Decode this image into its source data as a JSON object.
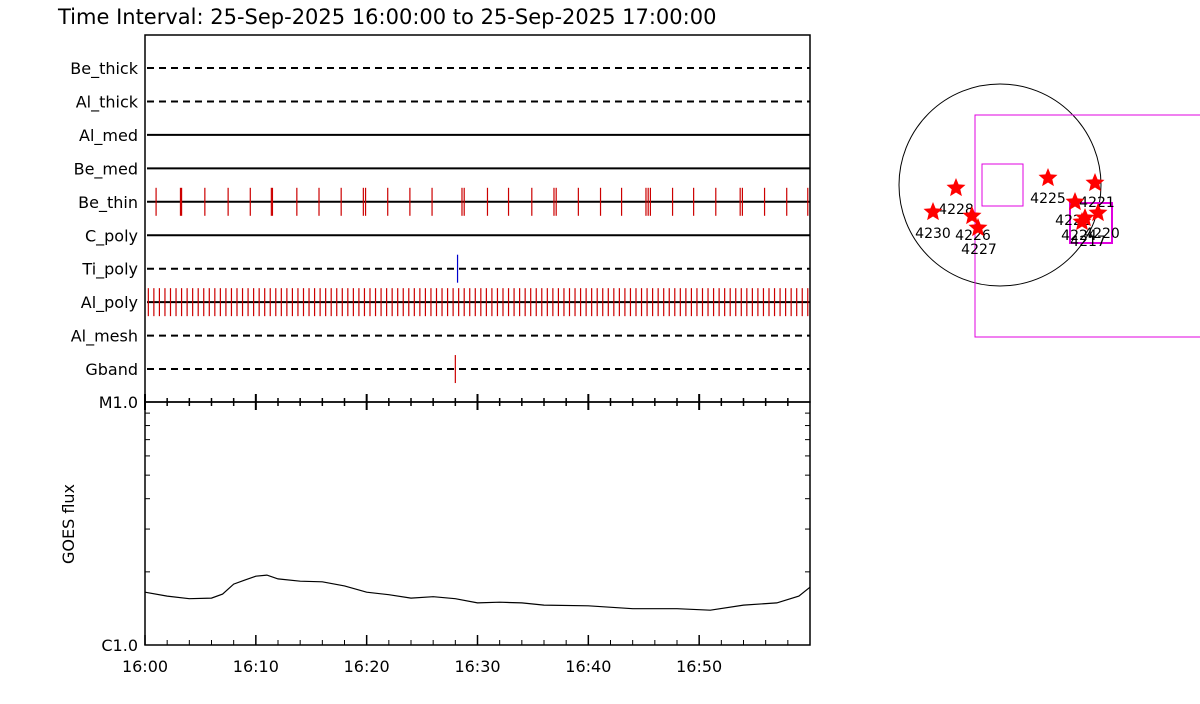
{
  "title": "Time Interval: 25-Sep-2025 16:00:00 to 25-Sep-2025 17:00:00",
  "chart_data": [
    {
      "type": "timeline",
      "xlim": [
        0,
        60
      ],
      "rows": [
        {
          "name": "Be_thick",
          "line": "dashed",
          "events": []
        },
        {
          "name": "Al_thick",
          "line": "dashed",
          "events": []
        },
        {
          "name": "Al_med",
          "line": "solid",
          "events": []
        },
        {
          "name": "Be_med",
          "line": "solid",
          "events": []
        },
        {
          "name": "Be_thin",
          "line": "solid",
          "color": "#cc0000",
          "events": [
            1.0,
            3.2,
            3.3,
            5.4,
            7.5,
            9.5,
            11.4,
            11.5,
            13.7,
            15.7,
            17.7,
            19.7,
            19.9,
            21.9,
            23.9,
            25.9,
            28.6,
            28.8,
            30.9,
            32.8,
            34.9,
            36.9,
            37.1,
            39.1,
            41.1,
            43.0,
            45.2,
            45.4,
            45.6,
            47.6,
            49.5,
            51.5,
            53.7,
            53.9,
            55.9,
            57.9,
            59.8
          ]
        },
        {
          "name": "C_poly",
          "line": "solid",
          "events": []
        },
        {
          "name": "Ti_poly",
          "line": "dashed",
          "color": "#0000cc",
          "events": [
            28.2
          ]
        },
        {
          "name": "Al_poly",
          "line": "solid",
          "color": "#cc0000",
          "events": [
            0.3,
            0.8,
            1.3,
            1.8,
            2.3,
            2.8,
            3.3,
            3.8,
            4.3,
            4.8,
            5.3,
            5.8,
            6.3,
            6.8,
            7.3,
            7.8,
            8.3,
            8.8,
            9.3,
            9.8,
            10.3,
            10.8,
            11.3,
            11.8,
            12.3,
            12.8,
            13.3,
            13.8,
            14.3,
            14.8,
            15.3,
            15.8,
            16.3,
            16.8,
            17.3,
            17.8,
            18.3,
            18.8,
            19.3,
            19.8,
            20.3,
            20.8,
            21.3,
            21.8,
            22.3,
            22.8,
            23.3,
            23.8,
            24.3,
            24.8,
            25.3,
            25.8,
            26.3,
            26.8,
            27.3,
            27.8,
            28.3,
            28.8,
            29.3,
            29.8,
            30.3,
            30.8,
            31.3,
            31.8,
            32.3,
            32.8,
            33.3,
            33.8,
            34.3,
            34.8,
            35.3,
            35.8,
            36.3,
            36.8,
            37.3,
            37.8,
            38.3,
            38.8,
            39.3,
            39.8,
            40.3,
            40.8,
            41.3,
            41.8,
            42.3,
            42.8,
            43.3,
            43.8,
            44.3,
            44.8,
            45.3,
            45.8,
            46.3,
            46.8,
            47.3,
            47.8,
            48.3,
            48.8,
            49.3,
            49.8,
            50.3,
            50.8,
            51.3,
            51.8,
            52.3,
            52.8,
            53.3,
            53.8,
            54.3,
            54.8,
            55.3,
            55.8,
            56.3,
            56.8,
            57.3,
            57.8,
            58.3,
            58.8,
            59.3,
            59.8
          ]
        },
        {
          "name": "Al_mesh",
          "line": "dashed",
          "events": []
        },
        {
          "name": "Gband",
          "line": "dashed",
          "color": "#cc0000",
          "events": [
            28.0
          ]
        }
      ]
    },
    {
      "type": "line",
      "ylabel": "GOES flux",
      "color": "#000000",
      "log_y": true,
      "x": [
        0,
        2,
        4,
        6,
        7,
        8,
        9,
        10,
        11,
        12,
        14,
        16,
        18,
        20,
        22,
        24,
        26,
        28,
        30,
        32,
        34,
        36,
        40,
        44,
        48,
        51,
        54,
        57,
        59,
        60
      ],
      "values": [
        1.65e-06,
        1.59e-06,
        1.55e-06,
        1.56e-06,
        1.62e-06,
        1.78e-06,
        1.85e-06,
        1.92e-06,
        1.94e-06,
        1.87e-06,
        1.83e-06,
        1.82e-06,
        1.75e-06,
        1.65e-06,
        1.61e-06,
        1.56e-06,
        1.58e-06,
        1.55e-06,
        1.49e-06,
        1.5e-06,
        1.49e-06,
        1.46e-06,
        1.45e-06,
        1.41e-06,
        1.41e-06,
        1.39e-06,
        1.46e-06,
        1.49e-06,
        1.59e-06,
        1.73e-06
      ],
      "xlim": [
        0,
        60
      ],
      "xticks": [
        {
          "value": 0,
          "label": "16:00"
        },
        {
          "value": 10,
          "label": "16:10"
        },
        {
          "value": 20,
          "label": "16:20"
        },
        {
          "value": 30,
          "label": "16:30"
        },
        {
          "value": 40,
          "label": "16:40"
        },
        {
          "value": 50,
          "label": "16:50"
        }
      ],
      "xminorticks": [
        2,
        4,
        6,
        8,
        12,
        14,
        16,
        18,
        22,
        24,
        26,
        28,
        32,
        34,
        36,
        38,
        42,
        44,
        46,
        48,
        52,
        54,
        56,
        58
      ],
      "ylim": [
        1e-06,
        1e-05
      ],
      "yticks": [
        {
          "value": 1e-06,
          "label": "C1.0"
        },
        {
          "value": 1e-05,
          "label": "M1.0"
        }
      ],
      "yminorticks": [
        2e-06,
        3e-06,
        4e-06,
        5e-06,
        6e-06,
        7e-06,
        8e-06,
        9e-06
      ]
    }
  ],
  "map": {
    "regions": [
      "4228",
      "4230",
      "4226",
      "4227",
      "4225",
      "4221",
      "4222",
      "4224",
      "4220",
      "4217"
    ]
  }
}
